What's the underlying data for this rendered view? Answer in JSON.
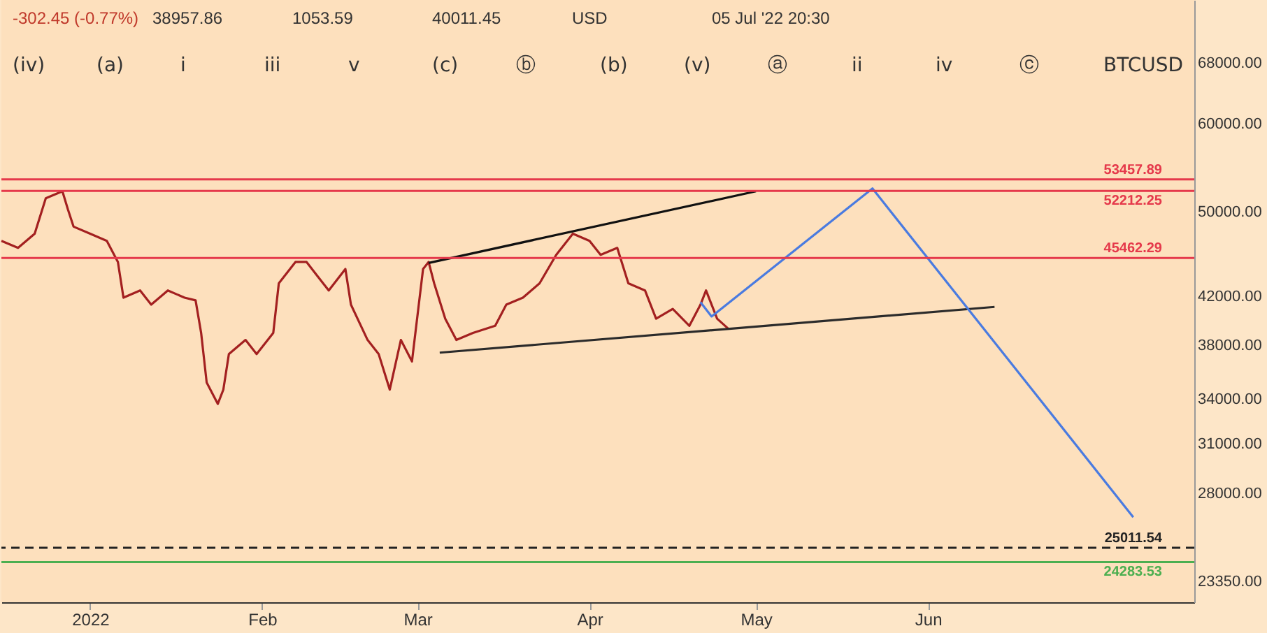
{
  "chart_data": {
    "type": "line",
    "xlim": [
      "2021-12-16",
      "2022-07-19"
    ],
    "xticks": [
      {
        "value": "2022-01-01",
        "label": "2022"
      },
      {
        "value": "2022-02-01",
        "label": "Feb"
      },
      {
        "value": "2022-03-01",
        "label": "Mar"
      },
      {
        "value": "2022-04-01",
        "label": "Apr"
      },
      {
        "value": "2022-05-01",
        "label": "May"
      },
      {
        "value": "2022-06-01",
        "label": "Jun"
      }
    ],
    "ylim": [
      22350,
      77400
    ],
    "log": true,
    "yticks": [
      {
        "value": 68000,
        "label": "68000.00"
      },
      {
        "value": 60000,
        "label": "60000.00"
      },
      {
        "value": 50000,
        "label": "50000.00"
      },
      {
        "value": 42000,
        "label": "42000.00"
      },
      {
        "value": 38000,
        "label": "38000.00"
      },
      {
        "value": 34000,
        "label": "34000.00"
      },
      {
        "value": 31000,
        "label": "31000.00"
      },
      {
        "value": 28000,
        "label": "28000.00"
      },
      {
        "value": 23350,
        "label": "23350.00"
      }
    ],
    "grid": false,
    "series": [
      {
        "color": "#a32020",
        "x": [
          "2021-12-16",
          "2021-12-19",
          "2021-12-22",
          "2021-12-24",
          "2021-12-27",
          "2021-12-28",
          "2021-12-29",
          "2022-01-01",
          "2022-01-04",
          "2022-01-06",
          "2022-01-07",
          "2022-01-10",
          "2022-01-12",
          "2022-01-15",
          "2022-01-18",
          "2022-01-20",
          "2022-01-21",
          "2022-01-22",
          "2022-01-24",
          "2022-01-25",
          "2022-01-26",
          "2022-01-29",
          "2022-01-31",
          "2022-02-03",
          "2022-02-04",
          "2022-02-07",
          "2022-02-09",
          "2022-02-11",
          "2022-02-13",
          "2022-02-16",
          "2022-02-17",
          "2022-02-20",
          "2022-02-22",
          "2022-02-24",
          "2022-02-26",
          "2022-02-28",
          "2022-03-02",
          "2022-03-03",
          "2022-03-04",
          "2022-03-06",
          "2022-03-08",
          "2022-03-11",
          "2022-03-15",
          "2022-03-17",
          "2022-03-20",
          "2022-03-23",
          "2022-03-26",
          "2022-03-29",
          "2022-04-01",
          "2022-04-03",
          "2022-04-06",
          "2022-04-08",
          "2022-04-11",
          "2022-04-13",
          "2022-04-16",
          "2022-04-19",
          "2022-04-21",
          "2022-04-22",
          "2022-04-24",
          "2022-04-26"
        ],
        "values": [
          47100,
          46420,
          47800,
          51420,
          52170,
          50230,
          48500,
          47800,
          47100,
          45090,
          41890,
          42520,
          41290,
          42520,
          41890,
          41660,
          38950,
          35160,
          33650,
          34650,
          37290,
          38390,
          37290,
          38950,
          43150,
          45090,
          45090,
          43780,
          42520,
          44440,
          41290,
          38390,
          37290,
          34650,
          38390,
          36730,
          44440,
          45090,
          43150,
          40110,
          38390,
          38950,
          39530,
          41290,
          41890,
          43150,
          45760,
          47800,
          47100,
          45760,
          46420,
          43150,
          42520,
          40110,
          40930,
          39530,
          41290,
          42520,
          40110,
          39300
        ]
      },
      {
        "color": "#2b2b2b",
        "x": [
          "2022-03-05",
          "2022-06-13"
        ],
        "values": [
          37400,
          41100
        ]
      },
      {
        "color": "#111111",
        "x": [
          "2022-03-03",
          "2022-05-01"
        ],
        "values": [
          45000,
          52170
        ]
      },
      {
        "color": "#4a7be0",
        "x": [
          "2022-04-21",
          "2022-04-23",
          "2022-05-22",
          "2022-07-08"
        ],
        "values": [
          41500,
          40300,
          52470,
          26640
        ]
      }
    ],
    "ref_lines": [
      {
        "axis": "y",
        "value": 53457.89,
        "label": "53457.89",
        "color": "#e5394b"
      },
      {
        "axis": "y",
        "value": 52212.25,
        "label": "52212.25",
        "color": "#e5394b"
      },
      {
        "axis": "y",
        "value": 45462.29,
        "label": "45462.29",
        "color": "#e5394b"
      },
      {
        "axis": "y",
        "value": 25011.54,
        "label": "25011.54",
        "color": "#222222",
        "line_style": "dashed"
      },
      {
        "axis": "y",
        "value": 24283.53,
        "label": "24283.53",
        "color": "#4caf50"
      }
    ],
    "annotations": [
      "-302.45 (-0.77%)",
      "38957.86",
      "1053.59",
      "40011.45",
      "USD",
      "05 Jul '22 20:30",
      "(iv)",
      "(a)",
      "i",
      "iii",
      "v",
      "(c)",
      "ⓑ",
      "(b)",
      "(v)",
      "ⓐ",
      "ii",
      "iv",
      "ⓒ",
      "BTCUSD"
    ]
  }
}
